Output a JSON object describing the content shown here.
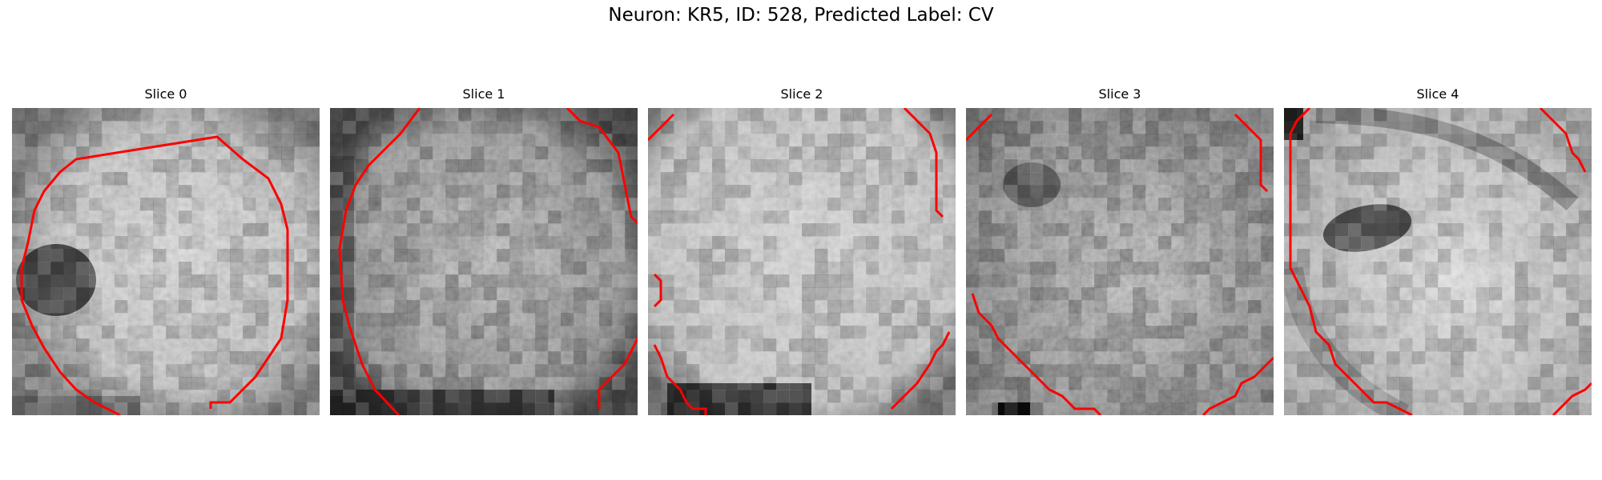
{
  "figure": {
    "title": "Neuron: KR5, ID: 528, Predicted Label: CV"
  },
  "panels": [
    {
      "title": "Slice 0"
    },
    {
      "title": "Slice 1"
    },
    {
      "title": "Slice 2"
    },
    {
      "title": "Slice 3"
    },
    {
      "title": "Slice 4"
    }
  ],
  "colors": {
    "contour": "#ff0000",
    "background": "#ffffff",
    "text": "#000000"
  },
  "image": {
    "colormap": "grayscale",
    "grid": "24x24 pixel tiles"
  }
}
